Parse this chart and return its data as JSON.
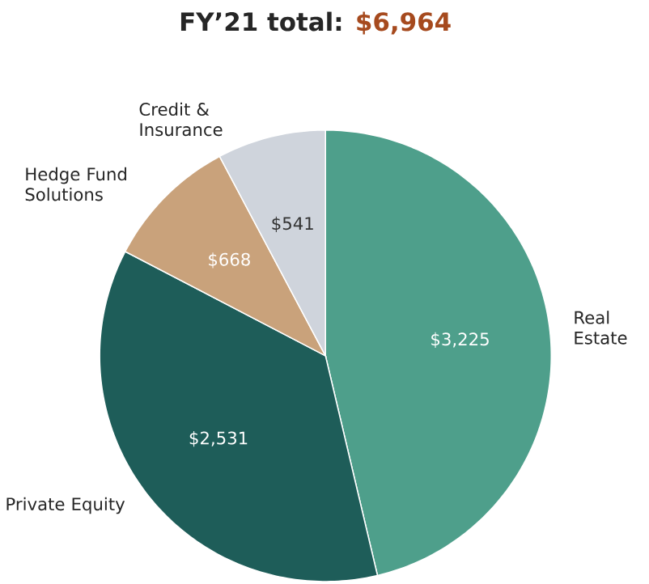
{
  "chart_data": {
    "type": "pie",
    "title": "FY’21 total:",
    "annotations": [
      "$6,964"
    ],
    "categories": [
      "Real Estate",
      "Private Equity",
      "Hedge Fund Solutions",
      "Credit & Insurance"
    ],
    "values": [
      3225,
      2531,
      668,
      541
    ],
    "value_labels": [
      "$3,225",
      "$2,531",
      "$668",
      "$541"
    ],
    "colors": [
      "#4e9f8b",
      "#1e5d59",
      "#c9a27b",
      "#cfd4dc"
    ]
  }
}
